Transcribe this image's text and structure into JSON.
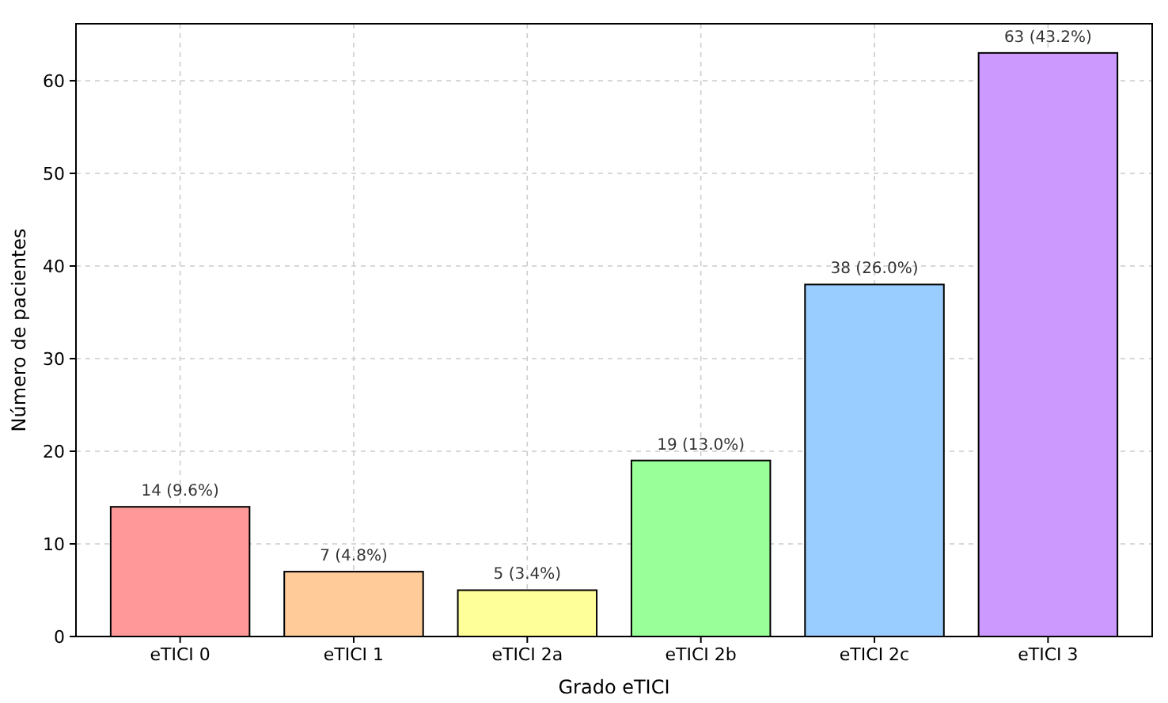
{
  "chart_data": {
    "type": "bar",
    "xlabel": "Grado eTICI",
    "ylabel": "Número de pacientes",
    "categories": [
      "eTICI 0",
      "eTICI 1",
      "eTICI 2a",
      "eTICI 2b",
      "eTICI 2c",
      "eTICI 3"
    ],
    "values": [
      14,
      7,
      5,
      19,
      38,
      63
    ],
    "colors": [
      "#ff9999",
      "#ffcc99",
      "#ffff99",
      "#99ff99",
      "#99ccff",
      "#cc99ff"
    ],
    "value_labels": [
      "14 (9.6%)",
      "7 (4.8%)",
      "5 (3.4%)",
      "19 (13.0%)",
      "38 (26.0%)",
      "63 (43.2%)"
    ],
    "ylim": [
      0,
      66.15
    ],
    "yticks": [
      0,
      10,
      20,
      30,
      40,
      50,
      60
    ],
    "grid": true
  }
}
